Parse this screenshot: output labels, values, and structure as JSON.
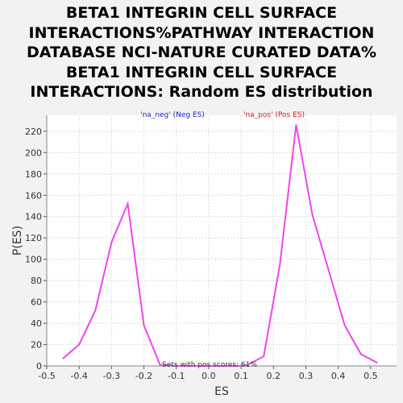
{
  "chart_data": {
    "type": "line",
    "title_lines": [
      "BETA1 INTEGRIN CELL SURFACE",
      "INTERACTIONS%PATHWAY INTERACTION",
      "DATABASE NCI-NATURE CURATED DATA%",
      "BETA1 INTEGRIN CELL SURFACE",
      "INTERACTIONS: Random ES distribution"
    ],
    "xlabel": "ES",
    "ylabel": "P(ES)",
    "xlim": [
      -0.5,
      0.58
    ],
    "ylim": [
      0,
      235
    ],
    "x_ticks": [
      "-0.5",
      "-0.4",
      "-0.3",
      "-0.2",
      "-0.1",
      "0.0",
      "0.1",
      "0.2",
      "0.3",
      "0.4",
      "0.5"
    ],
    "y_ticks": [
      "0",
      "20",
      "40",
      "60",
      "80",
      "100",
      "120",
      "140",
      "160",
      "180",
      "200",
      "220"
    ],
    "grid": true,
    "legend": [
      {
        "label": "'na_neg' (Neg ES)",
        "color": "#2222cc"
      },
      {
        "label": "'na_pos' (Pos ES)",
        "color": "#cc2222"
      }
    ],
    "annotation": "Sets with pos scores: 61%",
    "line_color": "#ee44ee",
    "series": [
      {
        "values_xy": [
          [
            -0.45,
            7
          ],
          [
            -0.4,
            20
          ],
          [
            -0.35,
            52
          ],
          [
            -0.3,
            116
          ],
          [
            -0.25,
            152
          ],
          [
            -0.2,
            38
          ],
          [
            -0.15,
            1
          ],
          [
            -0.1,
            0
          ],
          [
            0.1,
            0
          ],
          [
            0.12,
            1
          ],
          [
            0.17,
            9
          ],
          [
            0.22,
            95
          ],
          [
            0.27,
            226
          ],
          [
            0.32,
            142
          ],
          [
            0.37,
            90
          ],
          [
            0.42,
            38
          ],
          [
            0.47,
            11
          ],
          [
            0.52,
            3
          ]
        ]
      }
    ]
  }
}
